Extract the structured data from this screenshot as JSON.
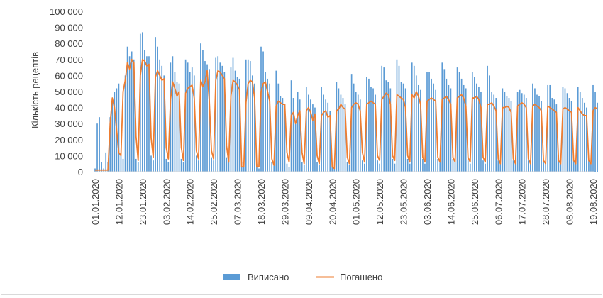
{
  "chart_data": {
    "type": "bar+line",
    "title": "",
    "xlabel": "",
    "ylabel": "Кількість рецептів",
    "ylim": [
      0,
      100000
    ],
    "y_ticks": [
      "0",
      "10 000",
      "20 000",
      "30 000",
      "40 000",
      "50 000",
      "60 000",
      "70 000",
      "80 000",
      "90 000",
      "100 000"
    ],
    "y_tick_values": [
      0,
      10000,
      20000,
      30000,
      40000,
      50000,
      60000,
      70000,
      80000,
      90000,
      100000
    ],
    "x_start": "2020-01-01",
    "x_end": "2020-08-19",
    "x_tick_labels": [
      "01.01.2020",
      "12.01.2020",
      "23.01.2020",
      "03.02.2020",
      "14.02.2020",
      "25.02.2020",
      "07.03.2020",
      "18.03.2020",
      "29.03.2020",
      "09.04.2020",
      "20.04.2020",
      "01.05.2020",
      "12.05.2020",
      "23.05.2020",
      "03.06.2020",
      "14.06.2020",
      "25.06.2020",
      "06.07.2020",
      "17.07.2020",
      "28.07.2020",
      "08.08.2020",
      "19.08.2020"
    ],
    "grid": false,
    "legend": "bottom",
    "series": [
      {
        "name": "Виписано",
        "kind": "bar",
        "color": "#5b9bd5",
        "values": [
          2000,
          30000,
          34000,
          6000,
          2000,
          12000,
          6000,
          34000,
          45000,
          50000,
          52000,
          55000,
          10000,
          8000,
          60000,
          78000,
          72000,
          75000,
          70000,
          8000,
          6000,
          86000,
          87000,
          76000,
          72000,
          72000,
          10000,
          7000,
          84000,
          78000,
          70000,
          66000,
          60000,
          8000,
          6000,
          68000,
          72000,
          62000,
          56000,
          55000,
          8000,
          6000,
          70000,
          68000,
          62000,
          65000,
          60000,
          10000,
          7000,
          80000,
          76000,
          69000,
          67000,
          64000,
          9000,
          7000,
          71000,
          72000,
          68000,
          66000,
          62000,
          9000,
          7000,
          65000,
          71000,
          63000,
          59000,
          58000,
          6000,
          3000,
          70000,
          70000,
          69000,
          60000,
          55000,
          5000,
          2000,
          78000,
          75000,
          62000,
          58000,
          55000,
          6000,
          4000,
          63000,
          55000,
          47000,
          46000,
          42000,
          5000,
          3000,
          57000,
          46000,
          32000,
          50000,
          45000,
          6000,
          4000,
          53000,
          48000,
          45000,
          42000,
          40000,
          6000,
          4000,
          53000,
          48000,
          45000,
          43000,
          38000,
          3000,
          2000,
          56000,
          52000,
          48000,
          46000,
          42000,
          6000,
          4000,
          61000,
          55000,
          50000,
          48000,
          45000,
          7000,
          5000,
          59000,
          58000,
          53000,
          52000,
          48000,
          7000,
          5000,
          66000,
          65000,
          57000,
          56000,
          52000,
          8000,
          5000,
          70000,
          66000,
          56000,
          55000,
          52000,
          8000,
          5000,
          68000,
          66000,
          60000,
          54000,
          51000,
          8000,
          5000,
          62000,
          62000,
          58000,
          55000,
          51000,
          8000,
          6000,
          68000,
          64000,
          58000,
          54000,
          52000,
          8000,
          6000,
          65000,
          62000,
          58000,
          54000,
          52000,
          7000,
          5000,
          62000,
          59000,
          55000,
          53000,
          50000,
          7000,
          5000,
          66000,
          60000,
          50000,
          48000,
          46000,
          7000,
          5000,
          52000,
          50000,
          47000,
          46000,
          44000,
          7000,
          5000,
          50000,
          51000,
          49000,
          48000,
          46000,
          7000,
          5000,
          55000,
          52000,
          48000,
          47000,
          44000,
          7000,
          5000,
          54000,
          54000,
          46000,
          45000,
          42000,
          7000,
          5000,
          53000,
          52000,
          49000,
          46000,
          44000,
          7000,
          5000,
          53000,
          50000,
          46000,
          43000,
          40000,
          7000,
          5000,
          54000,
          50000,
          43000
        ]
      },
      {
        "name": "Погашено",
        "kind": "line",
        "color": "#ed7d31",
        "values": [
          1000,
          1000,
          1000,
          1000,
          1000,
          1000,
          1000,
          30000,
          46000,
          40000,
          26000,
          12000,
          10000,
          50000,
          57000,
          68000,
          64000,
          70000,
          68000,
          22000,
          7000,
          60000,
          70000,
          69000,
          66000,
          67000,
          21000,
          9000,
          59000,
          63000,
          60000,
          57000,
          58000,
          15000,
          8000,
          45000,
          56000,
          52000,
          47000,
          50000,
          15000,
          7000,
          49000,
          52000,
          53000,
          54000,
          46000,
          13000,
          8000,
          57000,
          53000,
          56000,
          63000,
          44000,
          13000,
          8000,
          57000,
          63000,
          62000,
          60000,
          58000,
          16000,
          6000,
          47000,
          57000,
          56000,
          54000,
          51000,
          3000,
          3000,
          43000,
          55000,
          57000,
          56000,
          46000,
          3000,
          3000,
          50000,
          55000,
          56000,
          50000,
          44000,
          8000,
          4000,
          41000,
          44000,
          43000,
          42000,
          42000,
          12000,
          6000,
          35000,
          37000,
          30000,
          35000,
          38000,
          12000,
          5000,
          38000,
          40000,
          37000,
          32000,
          36000,
          10000,
          5000,
          35000,
          37000,
          38000,
          34000,
          35000,
          3000,
          2000,
          38000,
          39000,
          42000,
          40000,
          39000,
          9000,
          5000,
          40000,
          42000,
          43000,
          42000,
          38000,
          12000,
          6000,
          42000,
          43000,
          44000,
          43000,
          42000,
          10000,
          7000,
          45000,
          47000,
          49000,
          48000,
          42000,
          10000,
          7000,
          48000,
          47000,
          46000,
          45000,
          40000,
          10000,
          6000,
          48000,
          46000,
          50000,
          47000,
          42000,
          9000,
          6000,
          44000,
          45000,
          46000,
          45000,
          44000,
          9000,
          6000,
          45000,
          46000,
          47000,
          45000,
          42000,
          9000,
          6000,
          46000,
          47000,
          48000,
          46000,
          41000,
          9000,
          6000,
          46000,
          46000,
          47000,
          45000,
          40000,
          9000,
          6000,
          42000,
          42000,
          43000,
          41000,
          38000,
          8000,
          5000,
          40000,
          40000,
          41000,
          40000,
          37000,
          8000,
          5000,
          41000,
          42000,
          43000,
          42000,
          40000,
          8000,
          5000,
          41000,
          42000,
          41000,
          40000,
          38000,
          7000,
          5000,
          41000,
          40000,
          39000,
          38000,
          37000,
          7000,
          5000,
          39000,
          40000,
          39000,
          38000,
          37000,
          7000,
          5000,
          40000,
          38000,
          36000,
          35000,
          35000,
          7000,
          5000,
          38000,
          40000,
          39000
        ]
      }
    ]
  }
}
